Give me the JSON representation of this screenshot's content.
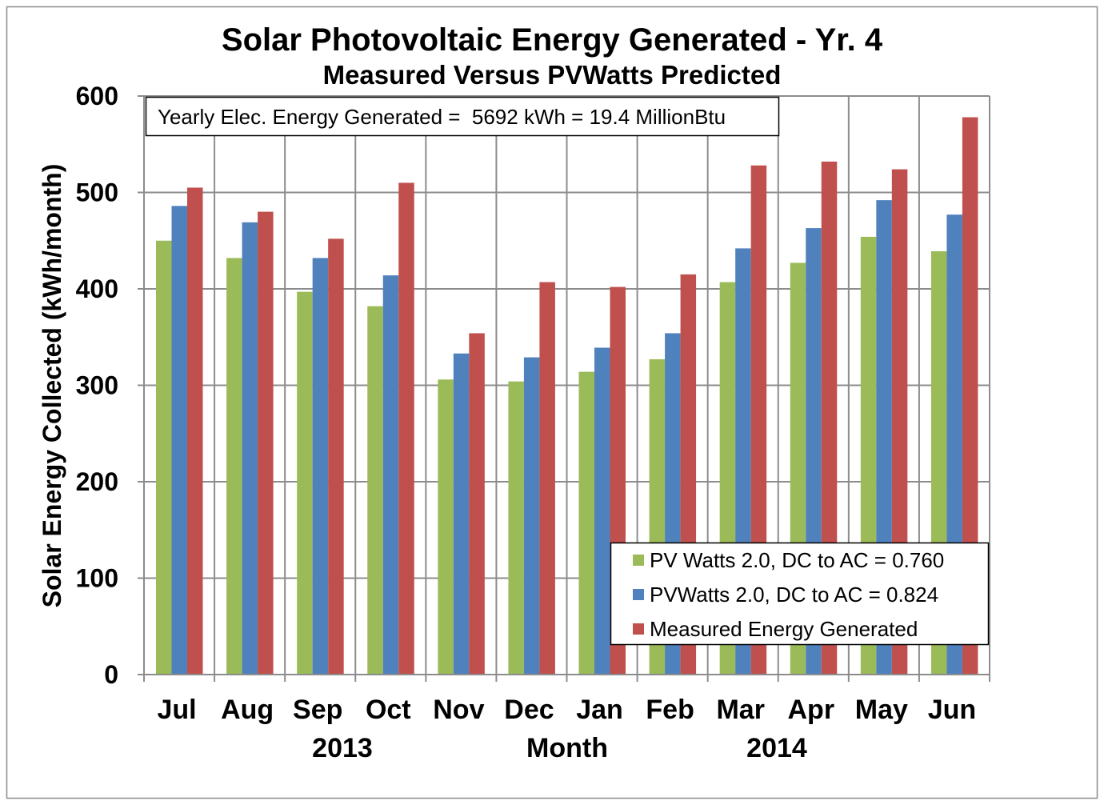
{
  "chart_data": {
    "type": "bar",
    "title": "Solar Photovoltaic Energy Generated - Yr. 4",
    "subtitle": "Measured Versus PVWatts Predicted",
    "annotation": "Yearly Elec. Energy Generated =  5692 kWh = 19.4 MillionBtu",
    "xlabel": "Month",
    "ylabel": "Solar Energy Collected (kWh/month)",
    "year_labels": [
      "2013",
      "2014"
    ],
    "categories": [
      "Jul",
      "Aug",
      "Sep",
      "Oct",
      "Nov",
      "Dec",
      "Jan",
      "Feb",
      "Mar",
      "Apr",
      "May",
      "Jun"
    ],
    "ylim": [
      0,
      600
    ],
    "yticks": [
      0,
      100,
      200,
      300,
      400,
      500,
      600
    ],
    "grid": true,
    "legend_position": "bottom-right",
    "series": [
      {
        "name": "PV Watts 2.0, DC to AC = 0.760",
        "color": "#9BBB59",
        "values": [
          450,
          432,
          397,
          382,
          306,
          304,
          314,
          327,
          407,
          427,
          454,
          439
        ]
      },
      {
        "name": "PVWatts 2.0, DC to AC = 0.824",
        "color": "#4F81BD",
        "values": [
          486,
          469,
          432,
          414,
          333,
          329,
          339,
          354,
          442,
          463,
          492,
          477
        ]
      },
      {
        "name": "Measured Energy Generated",
        "color": "#C0504D",
        "values": [
          505,
          480,
          452,
          510,
          354,
          407,
          402,
          415,
          528,
          532,
          524,
          578
        ]
      }
    ]
  }
}
